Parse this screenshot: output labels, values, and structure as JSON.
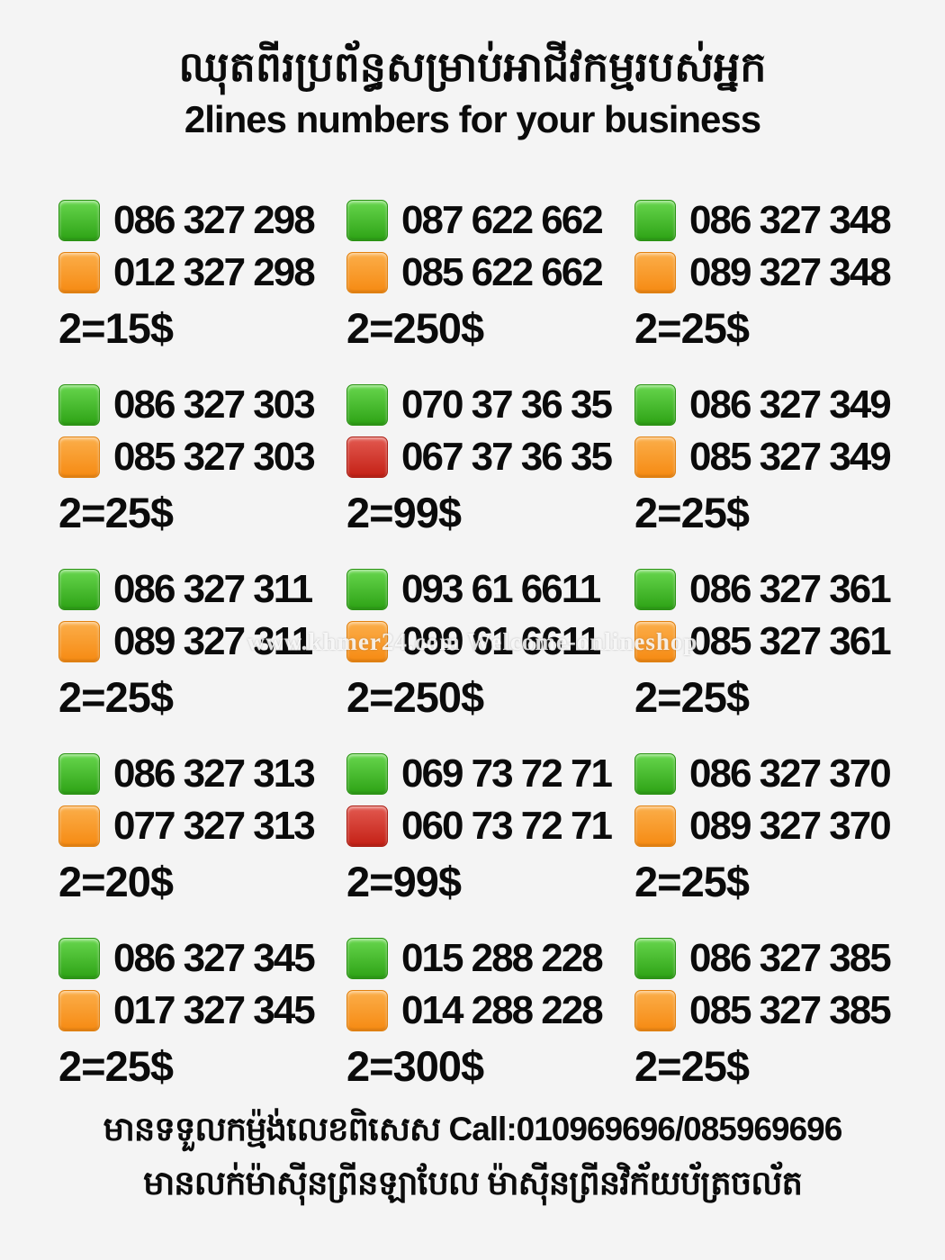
{
  "header": {
    "title_khmer": "ឈុតពីរប្រព័ន្ធសម្រាប់អាជីវកម្មរបស់អ្នក",
    "subtitle": "2lines numbers for your business"
  },
  "colors": {
    "green": "#2da215",
    "orange": "#f68a12",
    "red": "#c42015",
    "background": "#f4f4f4",
    "text": "#0b0b0b"
  },
  "cells": [
    {
      "lines": [
        {
          "color": "green",
          "number": "086 327 298"
        },
        {
          "color": "orange",
          "number": "012 327 298"
        }
      ],
      "price": "2=15$"
    },
    {
      "lines": [
        {
          "color": "green",
          "number": "087 622 662"
        },
        {
          "color": "orange",
          "number": "085 622 662"
        }
      ],
      "price": "2=250$"
    },
    {
      "lines": [
        {
          "color": "green",
          "number": "086 327 348"
        },
        {
          "color": "orange",
          "number": "089 327 348"
        }
      ],
      "price": "2=25$"
    },
    {
      "lines": [
        {
          "color": "green",
          "number": "086 327 303"
        },
        {
          "color": "orange",
          "number": "085 327 303"
        }
      ],
      "price": "2=25$"
    },
    {
      "lines": [
        {
          "color": "green",
          "number": "070 37 36 35"
        },
        {
          "color": "red",
          "number": "067 37 36 35"
        }
      ],
      "price": "2=99$"
    },
    {
      "lines": [
        {
          "color": "green",
          "number": "086 327 349"
        },
        {
          "color": "orange",
          "number": "085 327 349"
        }
      ],
      "price": "2=25$"
    },
    {
      "lines": [
        {
          "color": "green",
          "number": "086 327 311"
        },
        {
          "color": "orange",
          "number": "089 327 311"
        }
      ],
      "price": "2=25$"
    },
    {
      "lines": [
        {
          "color": "green",
          "number": "093 61 6611"
        },
        {
          "color": "orange",
          "number": "099 61 6611"
        }
      ],
      "price": "2=250$"
    },
    {
      "lines": [
        {
          "color": "green",
          "number": "086 327 361"
        },
        {
          "color": "orange",
          "number": "085 327 361"
        }
      ],
      "price": "2=25$"
    },
    {
      "lines": [
        {
          "color": "green",
          "number": "086 327 313"
        },
        {
          "color": "orange",
          "number": "077 327 313"
        }
      ],
      "price": "2=20$"
    },
    {
      "lines": [
        {
          "color": "green",
          "number": "069 73 72 71"
        },
        {
          "color": "red",
          "number": "060 73 72 71"
        }
      ],
      "price": "2=99$"
    },
    {
      "lines": [
        {
          "color": "green",
          "number": "086 327 370"
        },
        {
          "color": "orange",
          "number": "089 327 370"
        }
      ],
      "price": "2=25$"
    },
    {
      "lines": [
        {
          "color": "green",
          "number": "086 327 345"
        },
        {
          "color": "orange",
          "number": "017 327 345"
        }
      ],
      "price": "2=25$"
    },
    {
      "lines": [
        {
          "color": "green",
          "number": "015 288 228"
        },
        {
          "color": "orange",
          "number": "014 288 228"
        }
      ],
      "price": "2=300$"
    },
    {
      "lines": [
        {
          "color": "green",
          "number": "086 327 385"
        },
        {
          "color": "orange",
          "number": "085 327 385"
        }
      ],
      "price": "2=25$"
    }
  ],
  "watermark": "www.khmer24.com Welcome-onlineshop",
  "footer": {
    "line1_khmer": "មានទទួលកម្ម៉ង់លេខពិសេស",
    "line1_call": "Call:010969696/085969696",
    "line2_khmer": "មានលក់ម៉ាស៊ីនព្រីនឡាបែល ម៉ាស៊ីនព្រីនវិក័យប័ត្រចល័ត"
  }
}
